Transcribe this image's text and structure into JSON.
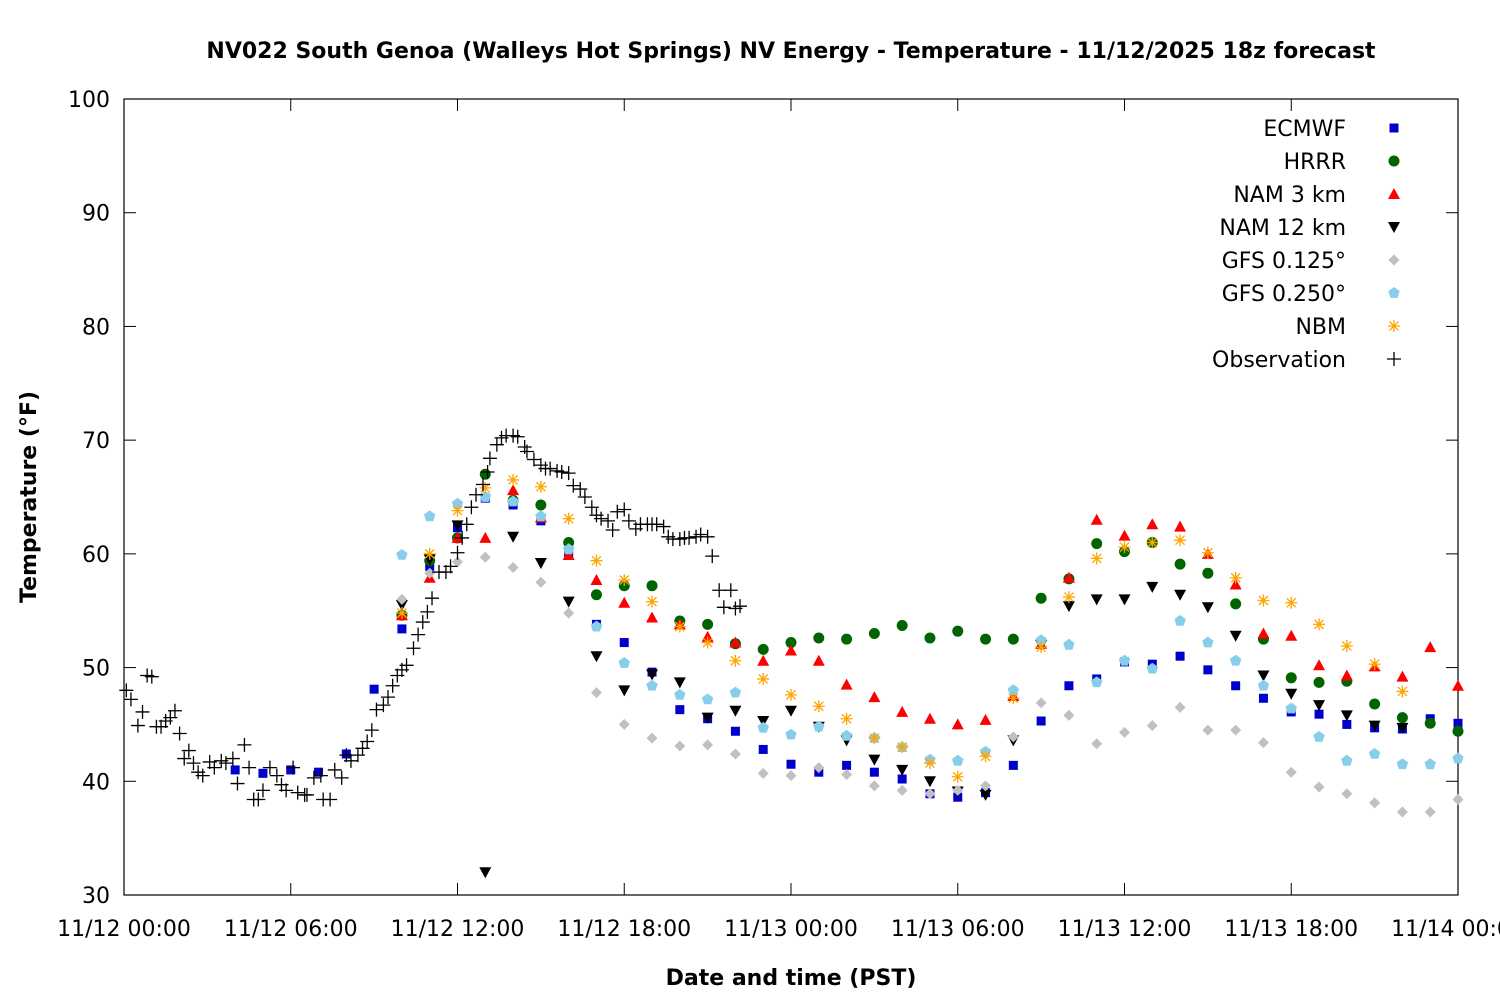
{
  "chart_data": {
    "type": "scatter",
    "title": "NV022 South Genoa (Walleys Hot Springs) NV Energy - Temperature - 11/12/2025 18z forecast",
    "xlabel": "Date and time (PST)",
    "ylabel": "Temperature (°F)",
    "ylim": [
      30,
      100
    ],
    "yticks": [
      "30",
      "40",
      "50",
      "60",
      "70",
      "80",
      "90",
      "100"
    ],
    "xlim": [
      "11/12 00:00",
      "11/14 00:00"
    ],
    "xticks": [
      "11/12 00:00",
      "11/12 06:00",
      "11/12 12:00",
      "11/12 18:00",
      "11/13 00:00",
      "11/13 06:00",
      "11/13 12:00",
      "11/13 18:00",
      "11/14 00:00"
    ],
    "grid": false,
    "legend_position": "top-right",
    "x": [
      "11/12 04:00",
      "11/12 05:00",
      "11/12 06:00",
      "11/12 07:00",
      "11/12 08:00",
      "11/12 09:00",
      "11/12 10:00",
      "11/12 11:00",
      "11/12 12:00",
      "11/12 13:00",
      "11/12 14:00",
      "11/12 15:00",
      "11/12 16:00",
      "11/12 17:00",
      "11/12 18:00",
      "11/12 19:00",
      "11/12 20:00",
      "11/12 21:00",
      "11/12 22:00",
      "11/12 23:00",
      "11/13 00:00",
      "11/13 01:00",
      "11/13 02:00",
      "11/13 03:00",
      "11/13 04:00",
      "11/13 05:00",
      "11/13 06:00",
      "11/13 07:00",
      "11/13 08:00",
      "11/13 09:00",
      "11/13 10:00",
      "11/13 11:00",
      "11/13 12:00",
      "11/13 13:00",
      "11/13 14:00",
      "11/13 15:00",
      "11/13 16:00",
      "11/13 17:00",
      "11/13 18:00",
      "11/13 19:00",
      "11/13 20:00",
      "11/13 21:00",
      "11/13 22:00",
      "11/13 23:00",
      "11/14 00:00"
    ],
    "series": [
      {
        "name": "ECMWF",
        "marker": "square",
        "color": "#0000cc",
        "values": [
          41.0,
          40.7,
          41.0,
          40.8,
          42.4,
          48.1,
          53.4,
          58.9,
          62.3,
          64.9,
          64.3,
          62.9,
          60.0,
          53.8,
          52.2,
          49.6,
          46.3,
          45.5,
          44.4,
          42.8,
          41.5,
          40.8,
          41.4,
          40.8,
          40.2,
          38.9,
          38.6,
          39.0,
          41.4,
          45.3,
          48.4,
          49.0,
          50.5,
          50.3,
          51.0,
          49.8,
          48.4,
          47.3,
          46.1,
          45.9,
          45.0,
          44.7,
          44.6,
          45.5,
          45.1
        ]
      },
      {
        "name": "HRRR",
        "marker": "circle",
        "color": "#006400",
        "values": [
          null,
          null,
          null,
          null,
          null,
          null,
          54.6,
          59.4,
          61.4,
          67.0,
          64.7,
          64.3,
          61.0,
          56.4,
          57.2,
          57.2,
          54.1,
          53.8,
          52.1,
          51.6,
          52.2,
          52.6,
          52.5,
          53.0,
          53.7,
          52.6,
          53.2,
          52.5,
          52.5,
          56.1,
          57.8,
          60.9,
          60.2,
          61.0,
          59.1,
          58.3,
          55.6,
          52.5,
          49.1,
          48.7,
          48.8,
          46.8,
          45.6,
          45.1,
          44.4
        ]
      },
      {
        "name": "NAM 3 km",
        "marker": "triangle-up",
        "color": "#ff0000",
        "values": [
          null,
          null,
          null,
          null,
          null,
          null,
          54.6,
          57.9,
          61.4,
          61.4,
          65.6,
          63.2,
          59.9,
          57.7,
          55.7,
          54.4,
          53.8,
          52.7,
          52.2,
          50.6,
          51.5,
          50.6,
          48.5,
          47.4,
          46.1,
          45.5,
          45.0,
          45.4,
          47.5,
          52.1,
          57.9,
          63.0,
          61.6,
          62.6,
          62.4,
          60.0,
          57.3,
          53.0,
          52.8,
          50.2,
          49.3,
          50.1,
          49.2,
          51.8,
          48.4
        ]
      },
      {
        "name": "NAM 12 km",
        "marker": "triangle-down",
        "color": "#000000",
        "values": [
          null,
          null,
          null,
          null,
          null,
          null,
          55.5,
          59.5,
          62.5,
          32.0,
          61.5,
          59.2,
          55.8,
          51.0,
          48.0,
          49.4,
          48.7,
          45.6,
          46.2,
          45.3,
          46.2,
          44.8,
          43.6,
          41.9,
          41.0,
          40.0,
          39.1,
          38.8,
          43.6,
          52.0,
          55.4,
          56.0,
          56.0,
          57.1,
          56.4,
          55.3,
          52.8,
          49.3,
          47.7,
          46.7,
          45.8,
          44.9,
          44.7,
          null,
          null
        ]
      },
      {
        "name": "GFS 0.125°",
        "marker": "diamond",
        "color": "#c0c0c0",
        "values": [
          null,
          null,
          null,
          null,
          null,
          null,
          56.0,
          58.3,
          59.3,
          59.7,
          58.8,
          57.5,
          54.8,
          47.8,
          45.0,
          43.8,
          43.1,
          43.2,
          42.4,
          40.7,
          40.5,
          41.2,
          40.6,
          39.6,
          39.2,
          38.9,
          39.2,
          39.6,
          43.9,
          46.9,
          45.8,
          43.3,
          44.3,
          44.9,
          46.5,
          44.5,
          44.5,
          43.4,
          40.8,
          39.5,
          38.9,
          38.1,
          37.3,
          37.3,
          38.4
        ]
      },
      {
        "name": "GFS 0.250°",
        "marker": "pentagon",
        "color": "#87ceeb",
        "values": [
          null,
          null,
          null,
          null,
          null,
          null,
          59.9,
          63.3,
          64.4,
          65.0,
          64.6,
          63.3,
          60.4,
          53.6,
          50.4,
          48.4,
          47.6,
          47.2,
          47.8,
          44.7,
          44.1,
          44.8,
          44.0,
          43.8,
          43.0,
          41.9,
          41.8,
          42.6,
          48.0,
          52.4,
          52.0,
          48.7,
          50.6,
          49.9,
          54.1,
          52.2,
          50.6,
          48.4,
          46.4,
          43.9,
          41.8,
          42.4,
          41.5,
          41.5,
          42.0
        ]
      },
      {
        "name": "NBM",
        "marker": "asterisk",
        "color": "#ffa500",
        "values": [
          null,
          null,
          null,
          null,
          null,
          null,
          54.8,
          60.0,
          63.8,
          65.8,
          66.5,
          65.9,
          63.1,
          59.4,
          57.7,
          55.8,
          53.6,
          52.2,
          50.6,
          49.0,
          47.6,
          46.6,
          45.5,
          43.8,
          43.0,
          41.6,
          40.4,
          42.2,
          47.3,
          51.8,
          56.2,
          59.6,
          60.6,
          61.0,
          61.2,
          60.1,
          57.9,
          55.9,
          55.7,
          53.8,
          51.9,
          50.3,
          47.9,
          null,
          null
        ]
      }
    ],
    "observation": {
      "name": "Observation",
      "marker": "plus",
      "color": "#000000",
      "points": [
        [
          "11/12 00:05",
          48.0
        ],
        [
          "11/12 00:15",
          47.2
        ],
        [
          "11/12 00:30",
          44.9
        ],
        [
          "11/12 00:40",
          46.1
        ],
        [
          "11/12 00:50",
          49.3
        ],
        [
          "11/12 01:00",
          49.2
        ],
        [
          "11/12 01:10",
          44.8
        ],
        [
          "11/12 01:20",
          44.8
        ],
        [
          "11/12 01:30",
          45.3
        ],
        [
          "11/12 01:40",
          45.6
        ],
        [
          "11/12 01:50",
          46.2
        ],
        [
          "11/12 02:00",
          44.2
        ],
        [
          "11/12 02:10",
          42.0
        ],
        [
          "11/12 02:20",
          42.7
        ],
        [
          "11/12 02:30",
          41.6
        ],
        [
          "11/12 02:40",
          40.8
        ],
        [
          "11/12 02:50",
          40.5
        ],
        [
          "11/12 03:05",
          41.7
        ],
        [
          "11/12 03:15",
          41.2
        ],
        [
          "11/12 03:30",
          41.8
        ],
        [
          "11/12 03:40",
          41.6
        ],
        [
          "11/12 03:55",
          42.0
        ],
        [
          "11/12 04:05",
          39.8
        ],
        [
          "11/12 04:20",
          43.2
        ],
        [
          "11/12 04:30",
          41.2
        ],
        [
          "11/12 04:40",
          38.4
        ],
        [
          "11/12 04:50",
          38.4
        ],
        [
          "11/12 05:00",
          39.2
        ],
        [
          "11/12 05:15",
          41.2
        ],
        [
          "11/12 05:30",
          40.5
        ],
        [
          "11/12 05:40",
          39.7
        ],
        [
          "11/12 05:50",
          39.2
        ],
        [
          "11/12 06:05",
          41.2
        ],
        [
          "11/12 06:15",
          39.0
        ],
        [
          "11/12 06:30",
          38.8
        ],
        [
          "11/12 06:35",
          38.8
        ],
        [
          "11/12 06:50",
          40.3
        ],
        [
          "11/12 07:05",
          40.5
        ],
        [
          "11/12 07:10",
          38.4
        ],
        [
          "11/12 07:25",
          38.4
        ],
        [
          "11/12 07:35",
          41.0
        ],
        [
          "11/12 07:50",
          40.3
        ],
        [
          "11/12 08:00",
          42.3
        ],
        [
          "11/12 08:10",
          41.8
        ],
        [
          "11/12 08:25",
          42.3
        ],
        [
          "11/12 08:35",
          42.9
        ],
        [
          "11/12 08:45",
          43.5
        ],
        [
          "11/12 08:55",
          44.5
        ],
        [
          "11/12 09:05",
          46.3
        ],
        [
          "11/12 09:20",
          46.7
        ],
        [
          "11/12 09:30",
          47.4
        ],
        [
          "11/12 09:40",
          48.4
        ],
        [
          "11/12 09:50",
          49.3
        ],
        [
          "11/12 10:00",
          49.8
        ],
        [
          "11/12 10:10",
          50.2
        ],
        [
          "11/12 10:25",
          51.7
        ],
        [
          "11/12 10:35",
          52.9
        ],
        [
          "11/12 10:45",
          54.0
        ],
        [
          "11/12 10:55",
          54.9
        ],
        [
          "11/12 11:05",
          56.1
        ],
        [
          "11/12 11:20",
          58.4
        ],
        [
          "11/12 11:35",
          58.4
        ],
        [
          "11/12 11:45",
          58.9
        ],
        [
          "11/12 12:00",
          60.1
        ],
        [
          "11/12 12:10",
          61.4
        ],
        [
          "11/12 12:20",
          62.6
        ],
        [
          "11/12 12:30",
          64.1
        ],
        [
          "11/12 12:40",
          65.2
        ],
        [
          "11/12 12:55",
          66.1
        ],
        [
          "11/12 13:05",
          67.2
        ],
        [
          "11/12 13:10",
          68.4
        ],
        [
          "11/12 13:25",
          69.6
        ],
        [
          "11/12 13:35",
          70.2
        ],
        [
          "11/12 13:45",
          70.4
        ],
        [
          "11/12 14:00",
          70.4
        ],
        [
          "11/12 14:10",
          70.3
        ],
        [
          "11/12 14:25",
          69.4
        ],
        [
          "11/12 14:30",
          69.0
        ],
        [
          "11/12 14:45",
          68.3
        ],
        [
          "11/12 15:00",
          67.8
        ],
        [
          "11/12 15:10",
          67.5
        ],
        [
          "11/12 15:20",
          67.5
        ],
        [
          "11/12 15:35",
          67.3
        ],
        [
          "11/12 15:45",
          67.2
        ],
        [
          "11/12 16:00",
          67.1
        ],
        [
          "11/12 16:10",
          66.0
        ],
        [
          "11/12 16:25",
          65.7
        ],
        [
          "11/12 16:35",
          65.0
        ],
        [
          "11/12 16:50",
          64.1
        ],
        [
          "11/12 17:00",
          63.4
        ],
        [
          "11/12 17:10",
          63.1
        ],
        [
          "11/12 17:25",
          62.9
        ],
        [
          "11/12 17:35",
          62.1
        ],
        [
          "11/12 17:45",
          63.7
        ],
        [
          "11/12 18:00",
          63.9
        ],
        [
          "11/12 18:10",
          62.9
        ],
        [
          "11/12 18:25",
          62.2
        ],
        [
          "11/12 18:35",
          62.6
        ],
        [
          "11/12 18:50",
          62.6
        ],
        [
          "11/12 19:00",
          62.6
        ],
        [
          "11/12 19:10",
          62.6
        ],
        [
          "11/12 19:25",
          62.4
        ],
        [
          "11/12 19:35",
          61.5
        ],
        [
          "11/12 19:45",
          61.3
        ],
        [
          "11/12 20:00",
          61.3
        ],
        [
          "11/12 20:10",
          61.4
        ],
        [
          "11/12 20:20",
          61.4
        ],
        [
          "11/12 20:35",
          61.5
        ],
        [
          "11/12 20:45",
          61.7
        ],
        [
          "11/12 21:00",
          61.5
        ],
        [
          "11/12 21:10",
          59.8
        ],
        [
          "11/12 21:25",
          56.8
        ],
        [
          "11/12 21:35",
          55.3
        ],
        [
          "11/12 21:50",
          56.8
        ],
        [
          "11/12 22:00",
          55.2
        ],
        [
          "11/12 22:10",
          55.4
        ]
      ]
    }
  }
}
